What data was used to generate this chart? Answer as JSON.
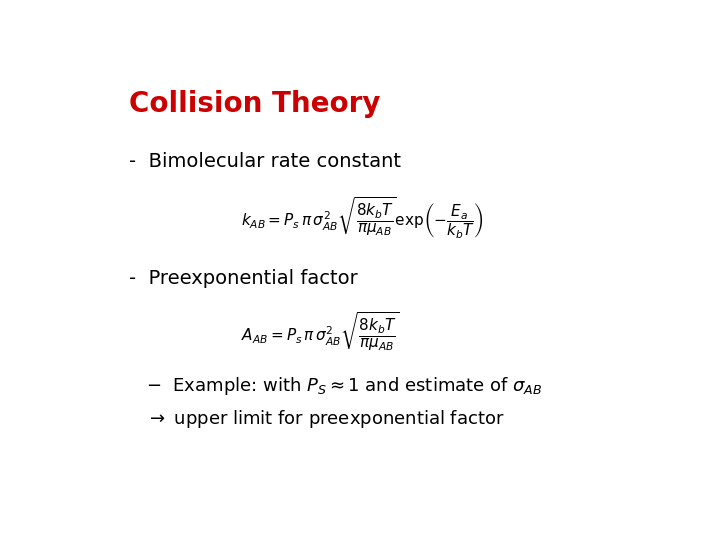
{
  "title": "Collision Theory",
  "title_color": "#CC0000",
  "title_fontsize": 20,
  "background_color": "#FFFFFF",
  "bullet1": "Bimolecular rate constant",
  "bullet2": "Preexponential factor",
  "bullet_fontsize": 14,
  "formula_fontsize": 11,
  "example_fontsize": 13,
  "text_color": "#000000",
  "dash": "-"
}
